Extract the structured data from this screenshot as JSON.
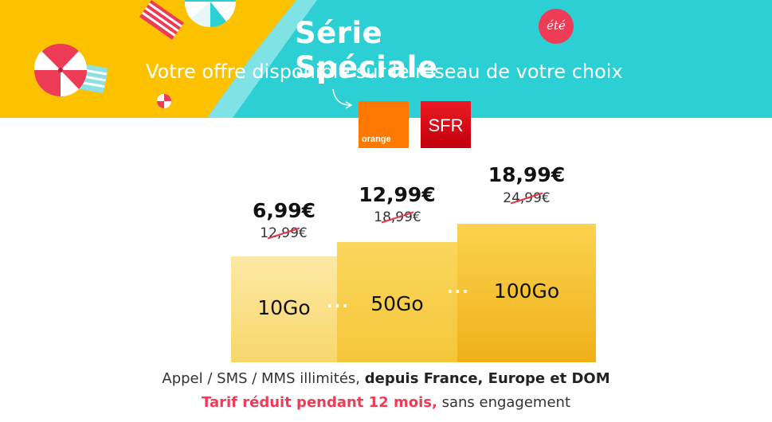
{
  "banner": {
    "title": "Série Spéciale",
    "badge": "été",
    "subtitle": "Votre offre disponible sur le réseau de votre choix",
    "colors": {
      "sea": "#2ccfd4",
      "sand": "#fcc200",
      "badge": "#ee3b56"
    }
  },
  "operators": [
    {
      "name": "orange",
      "color": "#ff7900"
    },
    {
      "name": "SFR",
      "color": "#e1000f"
    }
  ],
  "plans": [
    {
      "data": "10Go",
      "price": "6,99€",
      "old_price": "12,99€"
    },
    {
      "data": "50Go",
      "price": "12,99€",
      "old_price": "18,99€"
    },
    {
      "data": "100Go",
      "price": "18,99€",
      "old_price": "24,99€"
    }
  ],
  "footer": {
    "line1_regular": "Appel / SMS / MMS illimités,",
    "line1_bold": "depuis France, Europe et DOM",
    "line2_highlight": "Tarif réduit pendant 12 mois,",
    "line2_regular": "sans engagement"
  }
}
